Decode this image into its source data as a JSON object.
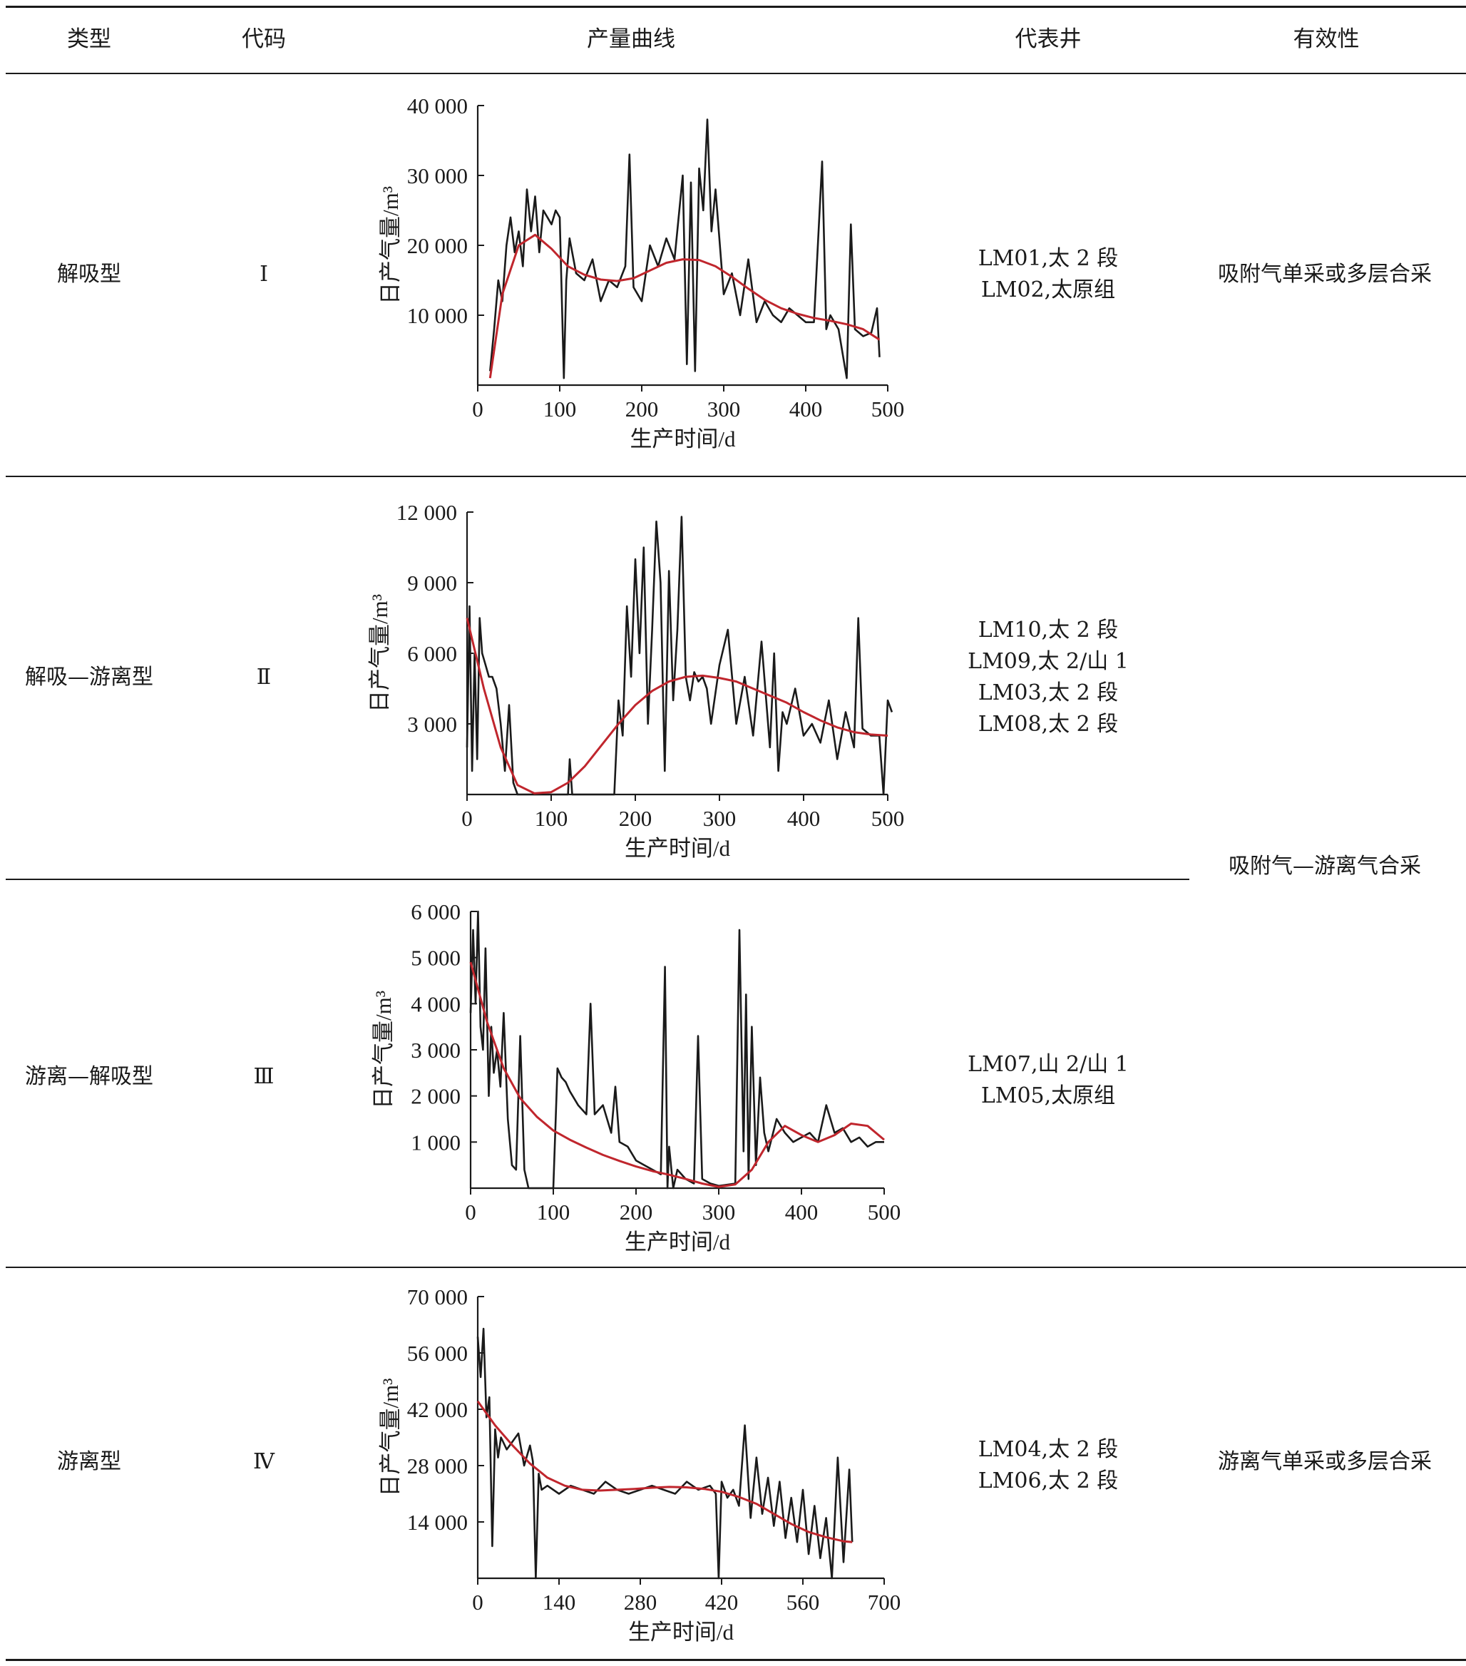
{
  "header": {
    "type": "类型",
    "code": "代码",
    "curve": "产量曲线",
    "wells": "代表井",
    "effectiveness": "有效性"
  },
  "rows": [
    {
      "type": "解吸型",
      "code": "Ⅰ",
      "wells": [
        "LM01,太 2 段",
        "LM02,太原组"
      ],
      "effectiveness": "吸附气单采或多层合采"
    },
    {
      "type": "解吸—游离型",
      "code": "Ⅱ",
      "wells": [
        "LM10,太 2 段",
        "LM09,太 2/山 1",
        "LM03,太 2 段",
        "LM08,太 2 段"
      ],
      "effectiveness": ""
    },
    {
      "type": "游离—解吸型",
      "code": "Ⅲ",
      "wells": [
        "LM07,山 2/山 1",
        "LM05,太原组"
      ],
      "effectiveness": ""
    },
    {
      "type": "游离型",
      "code": "Ⅳ",
      "wells": [
        "LM04,太 2 段",
        "LM06,太 2 段"
      ],
      "effectiveness": "游离气单采或多层合采"
    }
  ],
  "merged_effectiveness": "吸附气—游离气合采",
  "chart_data": [
    {
      "type": "line",
      "xlabel": "生产时间/d",
      "ylabel": "日产气量/m³",
      "xlim": [
        0,
        500
      ],
      "ylim": [
        0,
        40000
      ],
      "xticks": [
        0,
        100,
        200,
        300,
        400,
        500
      ],
      "xtick_labels": [
        "0",
        "100",
        "200",
        "300",
        "400",
        "500"
      ],
      "yticks": [
        10000,
        20000,
        30000,
        40000
      ],
      "ytick_labels": [
        "10 000",
        "20 000",
        "30 000",
        "40 000"
      ],
      "series": [
        {
          "color": "#1a1a1a",
          "x": [
            15,
            20,
            25,
            30,
            35,
            40,
            45,
            50,
            55,
            60,
            65,
            70,
            75,
            80,
            85,
            90,
            95,
            100,
            105,
            108,
            112,
            120,
            130,
            140,
            150,
            160,
            170,
            180,
            185,
            190,
            200,
            210,
            220,
            230,
            240,
            250,
            255,
            260,
            265,
            270,
            275,
            280,
            285,
            290,
            300,
            310,
            320,
            330,
            340,
            350,
            360,
            370,
            380,
            390,
            400,
            410,
            420,
            425,
            430,
            440,
            450,
            455,
            460,
            470,
            480,
            487,
            490
          ],
          "y": [
            2000,
            8000,
            15000,
            12000,
            20000,
            24000,
            19000,
            22000,
            17000,
            28000,
            22000,
            27000,
            19000,
            25000,
            24000,
            23000,
            25000,
            24000,
            1000,
            15000,
            21000,
            16000,
            15000,
            18000,
            12000,
            15000,
            14000,
            17000,
            33000,
            14000,
            12000,
            20000,
            17000,
            21000,
            18000,
            30000,
            3000,
            29000,
            2000,
            31000,
            25000,
            38000,
            22000,
            28000,
            13000,
            16000,
            10000,
            18000,
            9000,
            12000,
            10000,
            9000,
            11000,
            10000,
            9000,
            9000,
            32000,
            8000,
            10000,
            8000,
            1000,
            23000,
            8000,
            7000,
            7500,
            11000,
            4000
          ]
        },
        {
          "color": "#c0262d",
          "x": [
            15,
            30,
            50,
            70,
            90,
            110,
            130,
            150,
            170,
            190,
            210,
            230,
            250,
            270,
            290,
            310,
            330,
            350,
            370,
            390,
            410,
            430,
            450,
            470,
            490
          ],
          "y": [
            1000,
            13000,
            20000,
            21500,
            19500,
            17000,
            15800,
            15100,
            14900,
            15300,
            16400,
            17500,
            18000,
            17900,
            17000,
            15500,
            13800,
            12200,
            11000,
            10200,
            9600,
            9200,
            8700,
            8000,
            6500
          ]
        }
      ]
    },
    {
      "type": "line",
      "xlabel": "生产时间/d",
      "ylabel": "日产气量/m³",
      "xlim": [
        0,
        500
      ],
      "ylim": [
        0,
        12000
      ],
      "xticks": [
        0,
        100,
        200,
        300,
        400,
        500
      ],
      "xtick_labels": [
        "0",
        "100",
        "200",
        "300",
        "400",
        "500"
      ],
      "yticks": [
        3000,
        6000,
        9000,
        12000
      ],
      "ytick_labels": [
        "3 000",
        "6 000",
        "9 000",
        "12 000"
      ],
      "series": [
        {
          "color": "#1a1a1a",
          "x": [
            0,
            3,
            6,
            9,
            12,
            15,
            18,
            22,
            26,
            30,
            35,
            40,
            45,
            50,
            55,
            60,
            65,
            70,
            80,
            90,
            100,
            110,
            120,
            122,
            125,
            130,
            140,
            150,
            160,
            170,
            175,
            180,
            185,
            190,
            195,
            200,
            205,
            210,
            215,
            220,
            225,
            230,
            235,
            240,
            245,
            250,
            255,
            260,
            265,
            270,
            275,
            280,
            285,
            290,
            300,
            310,
            320,
            330,
            340,
            350,
            360,
            365,
            370,
            375,
            380,
            390,
            400,
            410,
            420,
            430,
            440,
            450,
            460,
            465,
            470,
            480,
            490,
            495,
            500,
            505
          ],
          "y": [
            2000,
            8000,
            1000,
            6000,
            1500,
            7500,
            6000,
            5500,
            5000,
            5000,
            4500,
            3000,
            1000,
            3800,
            500,
            0,
            0,
            0,
            0,
            0,
            0,
            0,
            0,
            1500,
            0,
            0,
            0,
            0,
            0,
            0,
            0,
            4000,
            2500,
            8000,
            5000,
            10000,
            6000,
            10500,
            3000,
            7000,
            11600,
            9000,
            1000,
            9500,
            4000,
            7000,
            11800,
            5000,
            4000,
            5200,
            4800,
            5000,
            4500,
            3000,
            5500,
            7000,
            3000,
            5000,
            2500,
            6500,
            2000,
            6000,
            1000,
            3500,
            3000,
            4500,
            2500,
            3000,
            2200,
            4000,
            1500,
            3500,
            2000,
            7500,
            2800,
            2500,
            2500,
            0,
            4000,
            3500
          ]
        },
        {
          "color": "#c0262d",
          "x": [
            0,
            20,
            40,
            60,
            80,
            100,
            120,
            140,
            160,
            180,
            200,
            220,
            240,
            260,
            280,
            300,
            320,
            340,
            360,
            380,
            400,
            420,
            440,
            460,
            480,
            500
          ],
          "y": [
            7500,
            4500,
            2000,
            400,
            50,
            100,
            500,
            1200,
            2100,
            3000,
            3800,
            4400,
            4800,
            5000,
            5050,
            4950,
            4800,
            4500,
            4200,
            3900,
            3500,
            3150,
            2850,
            2650,
            2550,
            2500
          ]
        }
      ]
    },
    {
      "type": "line",
      "xlabel": "生产时间/d",
      "ylabel": "日产气量/m³",
      "xlim": [
        0,
        500
      ],
      "ylim": [
        0,
        6000
      ],
      "xticks": [
        0,
        100,
        200,
        300,
        400,
        500
      ],
      "xtick_labels": [
        "0",
        "100",
        "200",
        "300",
        "400",
        "500"
      ],
      "yticks": [
        1000,
        2000,
        3000,
        4000,
        5000,
        6000
      ],
      "ytick_labels": [
        "1 000",
        "2 000",
        "3 000",
        "4 000",
        "5 000",
        "6 000"
      ],
      "series": [
        {
          "color": "#1a1a1a",
          "x": [
            0,
            3,
            6,
            9,
            12,
            15,
            18,
            22,
            25,
            28,
            32,
            36,
            40,
            45,
            50,
            55,
            60,
            65,
            70,
            75,
            80,
            85,
            90,
            95,
            100,
            105,
            110,
            115,
            120,
            130,
            140,
            145,
            150,
            160,
            170,
            175,
            180,
            190,
            200,
            210,
            220,
            230,
            235,
            238,
            240,
            245,
            250,
            260,
            270,
            275,
            280,
            290,
            300,
            320,
            325,
            330,
            333,
            336,
            340,
            345,
            350,
            355,
            360,
            370,
            380,
            390,
            400,
            410,
            420,
            430,
            440,
            450,
            460,
            470,
            480,
            490,
            500
          ],
          "y": [
            3800,
            5600,
            4000,
            6000,
            3500,
            3000,
            5200,
            2000,
            3500,
            2500,
            3000,
            2200,
            3800,
            1500,
            500,
            400,
            3300,
            400,
            0,
            0,
            0,
            0,
            0,
            0,
            0,
            2600,
            2400,
            2300,
            2100,
            1800,
            1600,
            4000,
            1600,
            1800,
            1200,
            2200,
            1000,
            900,
            600,
            500,
            400,
            300,
            4800,
            0,
            900,
            0,
            400,
            200,
            100,
            3300,
            200,
            100,
            50,
            100,
            5600,
            800,
            4200,
            200,
            3500,
            500,
            2400,
            1200,
            800,
            1500,
            1200,
            1000,
            1100,
            1200,
            1000,
            1800,
            1200,
            1300,
            1000,
            1100,
            900,
            1000,
            1000
          ]
        },
        {
          "color": "#c0262d",
          "x": [
            0,
            20,
            40,
            60,
            80,
            100,
            120,
            140,
            160,
            180,
            200,
            220,
            240,
            260,
            280,
            300,
            320,
            340,
            360,
            380,
            400,
            420,
            440,
            460,
            480,
            500
          ],
          "y": [
            4900,
            3600,
            2600,
            1950,
            1550,
            1250,
            1050,
            880,
            720,
            590,
            470,
            370,
            290,
            200,
            100,
            30,
            80,
            400,
            1000,
            1350,
            1150,
            1000,
            1150,
            1400,
            1350,
            1050
          ]
        }
      ]
    },
    {
      "type": "line",
      "xlabel": "生产时间/d",
      "ylabel": "日产气量/m³",
      "xlim": [
        0,
        700
      ],
      "ylim": [
        0,
        70000
      ],
      "xticks": [
        0,
        140,
        280,
        420,
        560,
        700
      ],
      "xtick_labels": [
        "0",
        "140",
        "280",
        "420",
        "560",
        "700"
      ],
      "yticks": [
        14000,
        28000,
        42000,
        56000,
        70000
      ],
      "ytick_labels": [
        "14 000",
        "28 000",
        "42 000",
        "56 000",
        "70 000"
      ],
      "series": [
        {
          "color": "#1a1a1a",
          "x": [
            0,
            5,
            10,
            15,
            20,
            25,
            30,
            35,
            40,
            50,
            60,
            70,
            80,
            90,
            95,
            100,
            105,
            110,
            120,
            140,
            160,
            180,
            200,
            220,
            240,
            260,
            280,
            300,
            320,
            340,
            360,
            380,
            400,
            410,
            415,
            420,
            430,
            440,
            450,
            460,
            470,
            480,
            490,
            500,
            510,
            520,
            530,
            540,
            550,
            560,
            570,
            580,
            590,
            600,
            610,
            620,
            630,
            640,
            645
          ],
          "y": [
            60000,
            50000,
            62000,
            40000,
            45000,
            8000,
            37000,
            30000,
            35000,
            32000,
            34000,
            36000,
            28000,
            33000,
            29000,
            0,
            26000,
            22000,
            23000,
            21000,
            23000,
            22000,
            21000,
            24000,
            22000,
            21000,
            22000,
            23000,
            22000,
            21000,
            24000,
            22000,
            23000,
            21000,
            0,
            24000,
            20000,
            22000,
            18000,
            38000,
            15000,
            30000,
            16000,
            25000,
            13000,
            24000,
            10000,
            20000,
            9000,
            22000,
            6000,
            18000,
            5000,
            15000,
            0,
            30000,
            4000,
            27000,
            9000
          ]
        },
        {
          "color": "#c0262d",
          "x": [
            0,
            30,
            60,
            90,
            120,
            150,
            180,
            210,
            240,
            270,
            300,
            330,
            360,
            390,
            420,
            450,
            480,
            510,
            540,
            570,
            600,
            630,
            645
          ],
          "y": [
            44000,
            38000,
            33000,
            28500,
            25000,
            23000,
            22000,
            21800,
            22000,
            22200,
            22500,
            22700,
            22600,
            22200,
            21500,
            20200,
            18500,
            16000,
            13500,
            11500,
            10200,
            9200,
            9000
          ]
        }
      ]
    }
  ]
}
